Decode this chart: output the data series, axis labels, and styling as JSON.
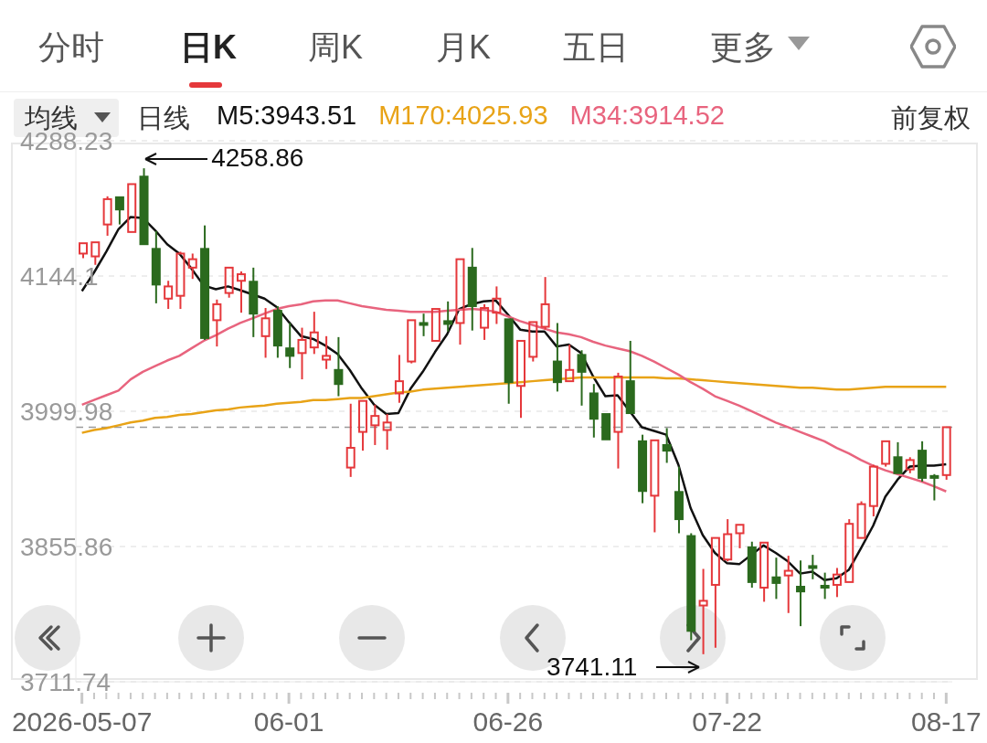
{
  "chart_data": {
    "type": "candlestick",
    "categories": [
      "2026-05-07",
      null,
      null,
      null,
      null,
      null,
      null,
      null,
      null,
      null,
      null,
      null,
      null,
      null,
      null,
      null,
      null,
      "06-01",
      null,
      null,
      null,
      null,
      null,
      null,
      null,
      null,
      null,
      null,
      null,
      null,
      null,
      null,
      null,
      null,
      null,
      "06-26",
      null,
      null,
      null,
      null,
      null,
      null,
      null,
      null,
      null,
      null,
      null,
      null,
      null,
      null,
      null,
      null,
      null,
      "07-22",
      null,
      null,
      null,
      null,
      null,
      null,
      null,
      null,
      null,
      null,
      null,
      null,
      null,
      null,
      null,
      null,
      null,
      "08-17"
    ],
    "ohlc": [
      [
        4168,
        4180,
        4163,
        4179
      ],
      [
        4165,
        4181,
        4156,
        4180
      ],
      [
        4199,
        4229,
        4187,
        4226
      ],
      [
        4228,
        4229,
        4199,
        4215
      ],
      [
        4191,
        4243,
        4191,
        4242
      ],
      [
        4250,
        4258.86,
        4177,
        4178
      ],
      [
        4173,
        4192,
        4115,
        4135
      ],
      [
        4120,
        4139,
        4109,
        4133
      ],
      [
        4123,
        4170,
        4109,
        4168
      ],
      [
        4153,
        4168,
        4141,
        4162
      ],
      [
        4173,
        4198,
        4076,
        4078
      ],
      [
        4097,
        4119,
        4069,
        4114
      ],
      [
        4126,
        4153,
        4121,
        4153
      ],
      [
        4139,
        4149,
        4105,
        4146
      ],
      [
        4138,
        4153,
        4079,
        4104
      ],
      [
        4080,
        4110,
        4057,
        4099
      ],
      [
        4107,
        4112,
        4057,
        4070
      ],
      [
        4067,
        4094,
        4046,
        4059
      ],
      [
        4062,
        4089,
        4034,
        4076
      ],
      [
        4068,
        4106,
        4061,
        4084
      ],
      [
        4055,
        4080,
        4045,
        4059
      ],
      [
        4044,
        4079,
        4016,
        4029
      ],
      [
        3940,
        4008,
        3930,
        3961
      ],
      [
        3978,
        4011,
        3958,
        4011
      ],
      [
        3985,
        4007,
        3964,
        3995
      ],
      [
        3980,
        3997,
        3959,
        3988
      ],
      [
        4019,
        4060,
        4009,
        4032
      ],
      [
        4053,
        4097,
        4051,
        4097
      ],
      [
        4094,
        4104,
        4080,
        4092
      ],
      [
        4075,
        4110,
        4074,
        4109
      ],
      [
        4096,
        4117,
        4085,
        4093
      ],
      [
        4094,
        4163,
        4071,
        4162
      ],
      [
        4153,
        4174,
        4086,
        4112
      ],
      [
        4089,
        4114,
        4076,
        4110
      ],
      [
        4105,
        4133,
        4093,
        4120
      ],
      [
        4098,
        4098,
        4008,
        4031
      ],
      [
        4027,
        4075,
        3993,
        4075
      ],
      [
        4058,
        4095,
        4053,
        4095
      ],
      [
        4090,
        4143,
        4087,
        4114
      ],
      [
        4053,
        4094,
        4021,
        4031
      ],
      [
        4032,
        4071,
        4031,
        4044
      ],
      [
        4060,
        4065,
        4006,
        4042
      ],
      [
        4019,
        4029,
        3972,
        3992
      ],
      [
        3997,
        3997,
        3970,
        3970
      ],
      [
        3978,
        4041,
        3939,
        4037
      ],
      [
        4032,
        4075,
        3998,
        3998
      ],
      [
        3968,
        3975,
        3902,
        3915
      ],
      [
        3910,
        3969,
        3871,
        3969
      ],
      [
        3964,
        3982,
        3945,
        3958
      ],
      [
        3914,
        3941,
        3870,
        3885
      ],
      [
        3867,
        3870,
        3756,
        3766
      ],
      [
        3793,
        3832,
        3741.11,
        3798
      ],
      [
        3815,
        3865,
        3748,
        3865
      ],
      [
        3842,
        3885,
        3840,
        3869
      ],
      [
        3870,
        3880,
        3854,
        3879
      ],
      [
        3855,
        3861,
        3812,
        3818
      ],
      [
        3812,
        3860,
        3797,
        3860
      ],
      [
        3823,
        3844,
        3800,
        3817
      ],
      [
        3825,
        3846,
        3785,
        3830
      ],
      [
        3813,
        3841,
        3771,
        3808
      ],
      [
        3835,
        3847,
        3821,
        3833
      ],
      [
        3814,
        3828,
        3800,
        3812
      ],
      [
        3815,
        3833,
        3802,
        3826
      ],
      [
        3818,
        3885,
        3818,
        3880
      ],
      [
        3865,
        3904,
        3865,
        3901
      ],
      [
        3899,
        3943,
        3888,
        3941
      ],
      [
        3944,
        3968,
        3941,
        3968
      ],
      [
        3951,
        3967,
        3933,
        3934
      ],
      [
        3938,
        3951,
        3934,
        3948
      ],
      [
        3958,
        3968,
        3925,
        3929
      ],
      [
        3931,
        3933,
        3905,
        3929
      ],
      [
        3932,
        3983,
        3927,
        3983
      ]
    ],
    "colors": [
      "#e5383b",
      "#e5383b",
      "#e5383b",
      "#2b6a1e",
      "#e5383b",
      "#2b6a1e",
      "#2b6a1e",
      "#e5383b",
      "#e5383b",
      "#e5383b",
      "#2b6a1e",
      "#e5383b",
      "#e5383b",
      "#e5383b",
      "#2b6a1e",
      "#e5383b",
      "#2b6a1e",
      "#2b6a1e",
      "#e5383b",
      "#e5383b",
      "#e5383b",
      "#2b6a1e",
      "#e5383b",
      "#e5383b",
      "#e5383b",
      "#e5383b",
      "#e5383b",
      "#e5383b",
      "#2b6a1e",
      "#e5383b",
      "#2b6a1e",
      "#e5383b",
      "#2b6a1e",
      "#e5383b",
      "#e5383b",
      "#2b6a1e",
      "#e5383b",
      "#e5383b",
      "#e5383b",
      "#2b6a1e",
      "#e5383b",
      "#2b6a1e",
      "#2b6a1e",
      "#2b6a1e",
      "#e5383b",
      "#2b6a1e",
      "#2b6a1e",
      "#e5383b",
      "#2b6a1e",
      "#2b6a1e",
      "#2b6a1e",
      "#e5383b",
      "#e5383b",
      "#e5383b",
      "#e5383b",
      "#2b6a1e",
      "#e5383b",
      "#2b6a1e",
      "#e5383b",
      "#2b6a1e",
      "#2b6a1e",
      "#2b6a1e",
      "#e5383b",
      "#e5383b",
      "#e5383b",
      "#e5383b",
      "#e5383b",
      "#2b6a1e",
      "#e5383b",
      "#2b6a1e",
      "#2b6a1e",
      "#e5383b"
    ],
    "series": [
      {
        "name": "M5:3943.51",
        "type": "line",
        "color": "#111111",
        "values": [
          4128,
          4148,
          4170,
          4194,
          4207,
          4206,
          4193,
          4178,
          4168,
          4152,
          4134,
          4130,
          4133,
          4129,
          null,
          4120,
          4111,
          4095,
          4080,
          4077,
          4070,
          4061,
          4044,
          4024,
          4007,
          3997,
          3998,
          4024,
          4042,
          4063,
          4082,
          4109,
          4114,
          4117,
          4118,
          4103,
          4087,
          4085,
          4085,
          4069,
          4071,
          4062,
          4037,
          4016,
          4017,
          null,
          3983,
          3979,
          3975,
          3943,
          3897,
          3868,
          3849,
          3838,
          3837,
          null,
          3857,
          3849,
          3840,
          3827,
          3829,
          3820,
          3822,
          3831,
          3854,
          3878,
          3909,
          3927,
          3941,
          3942,
          3942,
          3943.51
        ]
      },
      {
        "name": "M170:4025.93",
        "type": "line",
        "color": "#e8a317",
        "values": [
          3977,
          3980,
          3982,
          3985,
          3988,
          3990,
          3993,
          3994,
          3996,
          3997,
          3999,
          4001,
          4002,
          4004,
          4005,
          4006,
          4008,
          4009,
          4010,
          4012,
          4012,
          4013,
          4014,
          4014,
          4016,
          4018,
          4020,
          4021,
          4023,
          4024,
          4025,
          4026,
          4027,
          4028,
          4029,
          4030,
          4031,
          4032,
          4033,
          null,
          4035,
          4036,
          4036,
          4036,
          4036,
          4036,
          4036,
          4036,
          4035,
          4035,
          4034,
          4033,
          4032,
          4031,
          4030,
          4029,
          4028,
          4027,
          4026,
          4025,
          4025,
          4024,
          4023,
          4023,
          4024,
          4025,
          4026,
          4026,
          4026,
          4026,
          4026,
          4025.93
        ]
      },
      {
        "name": "M34:3914.52",
        "type": "line",
        "color": "#e8647e",
        "values": [
          4007,
          4012,
          4017,
          4022,
          4034,
          4042,
          4048,
          4054,
          4059,
          4067,
          4075,
          4081,
          4088,
          4094,
          4099,
          4104,
          4109,
          4112,
          4114,
          4117,
          4118,
          4118,
          4115,
          4112,
          4110,
          4108,
          4107,
          4106,
          4106,
          4106,
          4107,
          4108,
          4109,
          4108,
          4106,
          4101,
          4096,
          4092,
          4088,
          4084,
          4082,
          4079,
          4074,
          4070,
          4067,
          4064,
          4059,
          4053,
          4046,
          4039,
          4031,
          4024,
          4016,
          4011,
          4006,
          4000,
          3994,
          3988,
          3983,
          3978,
          3973,
          3968,
          3961,
          3955,
          3948,
          3942,
          3937,
          3933,
          3929,
          3925,
          3920,
          3914.52
        ]
      }
    ],
    "ylim": [
      3711.74,
      4288.23
    ],
    "yticks": [
      3711.74,
      3855.86,
      3999.98,
      4144.1,
      4288.23
    ],
    "grid": "y",
    "legend": "top left",
    "ref_lines": [
      {
        "axis": "y",
        "value": 3983,
        "color": "#9a9a9a",
        "line_style": "dashed"
      }
    ],
    "annotations": [
      "分时",
      "日K",
      "周K",
      "月K",
      "五日",
      "更多",
      "均线",
      "日线",
      "前复权",
      "4258.86",
      "3741.11"
    ]
  }
}
